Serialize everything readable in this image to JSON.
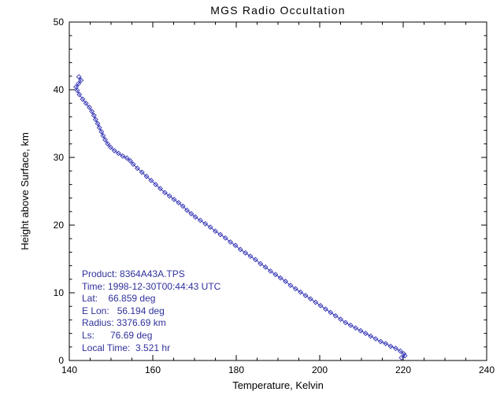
{
  "chart_data": {
    "type": "line",
    "title": "MGS Radio Occultation",
    "xlabel": "Temperature, Kelvin",
    "ylabel": "Height above Surface, km",
    "xlim": [
      140,
      240
    ],
    "ylim": [
      0,
      50
    ],
    "x_ticks": [
      140,
      160,
      180,
      200,
      220,
      240
    ],
    "y_ticks": [
      0,
      10,
      20,
      30,
      40,
      50
    ],
    "x_minor_step": 5,
    "y_minor_step": 2,
    "grid": false,
    "legend": "none",
    "marker": "open-diamond",
    "colors": {
      "line": "#3535b5",
      "marker": "#3535b5",
      "axis": "#000000",
      "text": "#000000",
      "annotation": "#30309c",
      "background": "#ffffff"
    },
    "series": [
      {
        "name": "temperature-profile",
        "x_units": "Kelvin",
        "y_units": "km",
        "points": [
          [
            142.3,
            41.9
          ],
          [
            142.8,
            41.4
          ],
          [
            142.2,
            40.9
          ],
          [
            141.6,
            40.4
          ],
          [
            141.9,
            39.9
          ],
          [
            142.4,
            39.3
          ],
          [
            143.2,
            38.6
          ],
          [
            144.0,
            38.0
          ],
          [
            144.8,
            37.4
          ],
          [
            145.4,
            36.8
          ],
          [
            145.9,
            36.2
          ],
          [
            146.3,
            35.6
          ],
          [
            146.8,
            35.0
          ],
          [
            147.2,
            34.4
          ],
          [
            147.7,
            33.8
          ],
          [
            148.1,
            33.2
          ],
          [
            148.6,
            32.6
          ],
          [
            149.2,
            32.0
          ],
          [
            149.9,
            31.5
          ],
          [
            150.8,
            31.0
          ],
          [
            151.8,
            30.6
          ],
          [
            152.8,
            30.2
          ],
          [
            153.8,
            29.9
          ],
          [
            154.6,
            29.5
          ],
          [
            155.3,
            29.0
          ],
          [
            156.3,
            28.4
          ],
          [
            157.4,
            27.8
          ],
          [
            158.5,
            27.2
          ],
          [
            159.6,
            26.6
          ],
          [
            160.7,
            26.0
          ],
          [
            161.8,
            25.4
          ],
          [
            162.9,
            24.8
          ],
          [
            164.0,
            24.3
          ],
          [
            165.1,
            23.8
          ],
          [
            166.2,
            23.3
          ],
          [
            167.2,
            22.8
          ],
          [
            168.2,
            22.2
          ],
          [
            169.2,
            21.7
          ],
          [
            170.2,
            21.2
          ],
          [
            171.4,
            20.7
          ],
          [
            172.6,
            20.2
          ],
          [
            173.8,
            19.7
          ],
          [
            175.0,
            19.1
          ],
          [
            176.2,
            18.6
          ],
          [
            177.4,
            18.1
          ],
          [
            178.6,
            17.5
          ],
          [
            179.8,
            17.0
          ],
          [
            181.0,
            16.4
          ],
          [
            182.2,
            15.9
          ],
          [
            183.4,
            15.4
          ],
          [
            184.6,
            14.9
          ],
          [
            185.8,
            14.3
          ],
          [
            187.0,
            13.8
          ],
          [
            188.2,
            13.2
          ],
          [
            189.4,
            12.7
          ],
          [
            190.6,
            12.2
          ],
          [
            191.8,
            11.7
          ],
          [
            193.0,
            11.1
          ],
          [
            194.2,
            10.6
          ],
          [
            195.4,
            10.1
          ],
          [
            196.6,
            9.6
          ],
          [
            197.8,
            9.1
          ],
          [
            199.0,
            8.6
          ],
          [
            200.2,
            8.1
          ],
          [
            201.4,
            7.6
          ],
          [
            202.6,
            7.1
          ],
          [
            203.8,
            6.6
          ],
          [
            205.0,
            6.1
          ],
          [
            206.2,
            5.6
          ],
          [
            207.4,
            5.2
          ],
          [
            208.6,
            4.8
          ],
          [
            209.8,
            4.4
          ],
          [
            211.0,
            4.0
          ],
          [
            212.2,
            3.6
          ],
          [
            213.4,
            3.2
          ],
          [
            214.6,
            2.8
          ],
          [
            215.8,
            2.5
          ],
          [
            217.0,
            2.1
          ],
          [
            218.2,
            1.8
          ],
          [
            219.3,
            1.4
          ],
          [
            220.1,
            1.0
          ],
          [
            220.4,
            0.7
          ],
          [
            219.6,
            0.4
          ]
        ]
      }
    ],
    "annotation": {
      "lines": [
        "Product: 8364A43A.TPS",
        "Time: 1998-12-30T00:44:43 UTC",
        "Lat:    66.859 deg",
        "E Lon:   56.194 deg",
        "Radius: 3376.69 km",
        "Ls:      76.69 deg",
        "Local Time:  3.521 hr"
      ]
    }
  }
}
